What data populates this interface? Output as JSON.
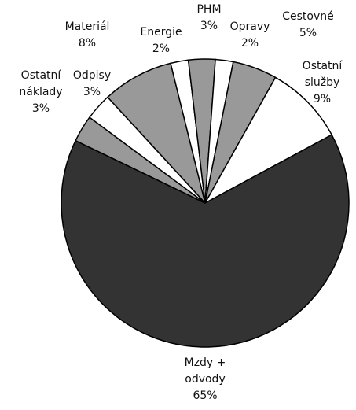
{
  "chart_data": {
    "type": "pie",
    "categories": [
      "Materiál",
      "Energie",
      "PHM",
      "Opravy",
      "Cestovné",
      "Ostatní služby",
      "Mzdy + odvody",
      "Ostatní náklady",
      "Odpisy"
    ],
    "values": [
      8,
      2,
      3,
      2,
      5,
      9,
      65,
      3,
      3
    ],
    "value_labels": [
      "8%",
      "2%",
      "3%",
      "2%",
      "5%",
      "9%",
      "65%",
      "3%",
      "3%"
    ],
    "colors": [
      "#999999",
      "#ffffff",
      "#999999",
      "#ffffff",
      "#999999",
      "#ffffff",
      "#333333",
      "#999999",
      "#ffffff"
    ]
  }
}
